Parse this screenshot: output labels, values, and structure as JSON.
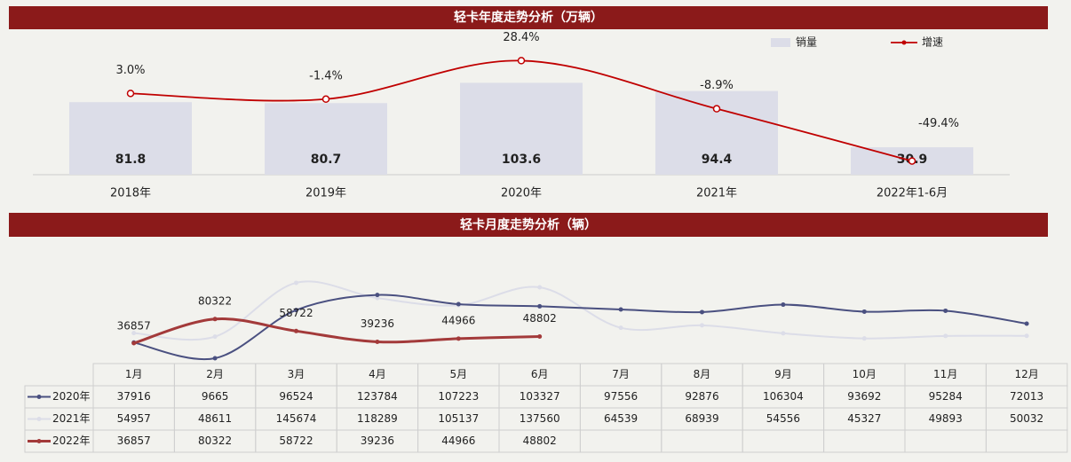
{
  "chart_data": [
    {
      "type": "bar-line",
      "title": "轻卡年度走势分析（万辆）",
      "categories": [
        "2018年",
        "2019年",
        "2020年",
        "2021年",
        "2022年1-6月"
      ],
      "ylim": [
        0,
        160
      ],
      "y2lim": [
        -60,
        50
      ],
      "series": [
        {
          "name": "销量",
          "color": "#dcdde8",
          "values": [
            81.8,
            80.7,
            103.6,
            94.4,
            30.9
          ]
        },
        {
          "name": "增速",
          "color": "#c00000",
          "axis": "y2",
          "values": [
            3.0,
            -1.4,
            28.4,
            -8.9,
            -49.4
          ],
          "value_labels": [
            "3.0%",
            "-1.4%",
            "28.4%",
            "-8.9%",
            "-49.4%"
          ]
        }
      ]
    },
    {
      "type": "line-table",
      "title": "轻卡月度走势分析（辆）",
      "categories": [
        "1月",
        "2月",
        "3月",
        "4月",
        "5月",
        "6月",
        "7月",
        "8月",
        "9月",
        "10月",
        "11月",
        "12月"
      ],
      "ylim": [
        0,
        160000
      ],
      "series": [
        {
          "name": "2020年",
          "color": "#4a5080",
          "values": [
            37916,
            9665,
            96524,
            123784,
            107223,
            103327,
            97556,
            92876,
            106304,
            93692,
            95284,
            72013
          ]
        },
        {
          "name": "2021年",
          "color": "#dcdde8",
          "values": [
            54957,
            48611,
            145674,
            118289,
            105137,
            137560,
            64539,
            68939,
            54556,
            45327,
            49893,
            50032
          ]
        },
        {
          "name": "2022年",
          "color": "#a33a3a",
          "labels": true,
          "values": [
            36857,
            80322,
            58722,
            39236,
            44966,
            48802,
            null,
            null,
            null,
            null,
            null,
            null
          ]
        }
      ]
    }
  ]
}
